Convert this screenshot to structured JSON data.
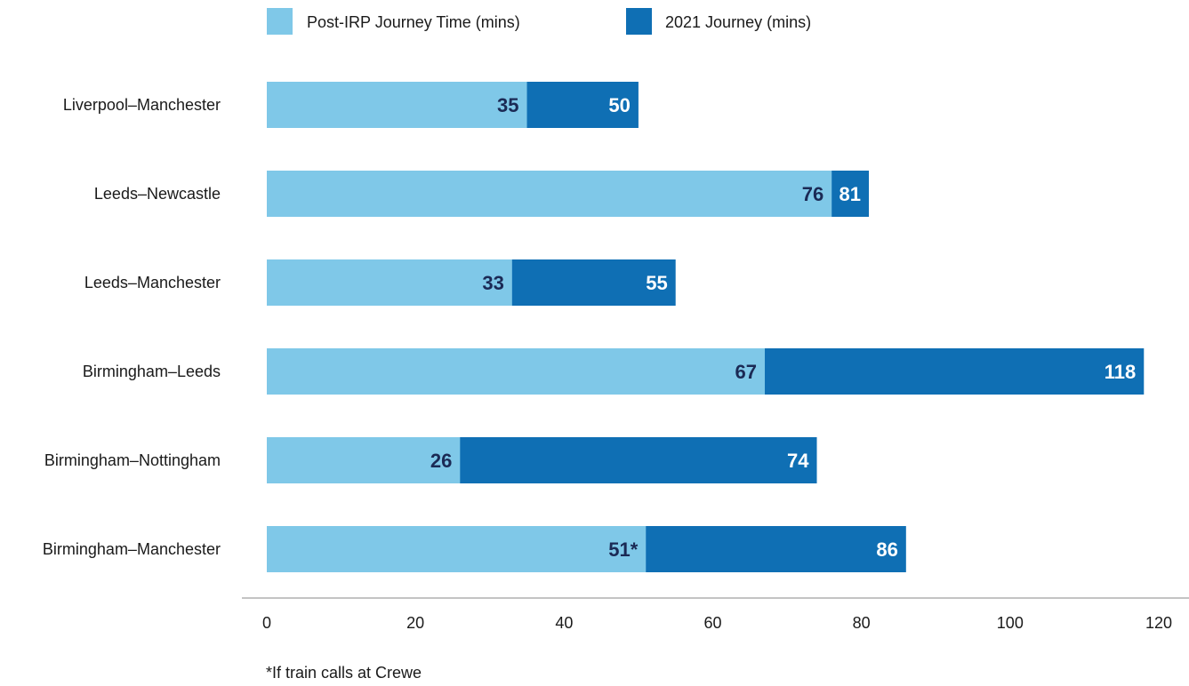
{
  "chart_data": {
    "type": "bar",
    "orientation": "horizontal",
    "stacking": "overlay",
    "categories": [
      "Liverpool–Manchester",
      "Leeds–Newcastle",
      "Leeds–Manchester",
      "Birmingham–Leeds",
      "Birmingham–Nottingham",
      "Birmingham–Manchester"
    ],
    "series": [
      {
        "name": "Post-IRP Journey Time (mins)",
        "color": "#7fc8e8",
        "label_color": "#1b2a55",
        "values": [
          35,
          76,
          33,
          67,
          26,
          51
        ],
        "value_labels": [
          "35",
          "76",
          "33",
          "67",
          "26",
          "51*"
        ]
      },
      {
        "name": "2021 Journey (mins)",
        "color": "#0f6fb4",
        "label_color": "#ffffff",
        "values": [
          50,
          81,
          55,
          118,
          74,
          86
        ],
        "value_labels": [
          "50",
          "81",
          "55",
          "118",
          "74",
          "86"
        ]
      }
    ],
    "xlim": [
      0,
      120
    ],
    "xticks": [
      "0",
      "20",
      "40",
      "60",
      "80",
      "100",
      "120"
    ],
    "title": "",
    "xlabel": "",
    "ylabel": "",
    "legend_position": "top",
    "grid": false
  },
  "footnote": "*If train calls at Crewe"
}
